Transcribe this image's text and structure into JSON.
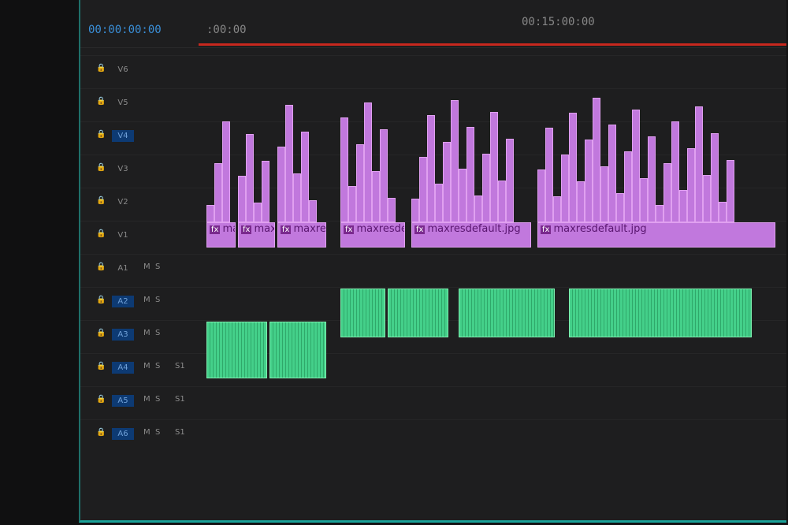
{
  "timeline": {
    "sequence_timecode": "00:00:00:00",
    "ruler_start": ":00:00",
    "ruler_mark": "00:15:00:00"
  },
  "tracks": {
    "video": [
      "V6",
      "V5",
      "V4",
      "V3",
      "V2",
      "V1"
    ],
    "audio": [
      "A1",
      "A2",
      "A3",
      "A4",
      "A5",
      "A6"
    ],
    "mute": "M",
    "solo": "S",
    "submix": "S1"
  },
  "clips": {
    "video": [
      "max",
      "maxr",
      "maxre",
      "maxresde",
      "maxresdefault.jpg",
      "maxresdefault.jpg"
    ],
    "fx_badge": "fx"
  },
  "colors": {
    "video_clip": "#c178dd",
    "audio_clip": "#44d08a",
    "playhead_bar": "#c8281e",
    "track_target": "#0d3a73"
  }
}
